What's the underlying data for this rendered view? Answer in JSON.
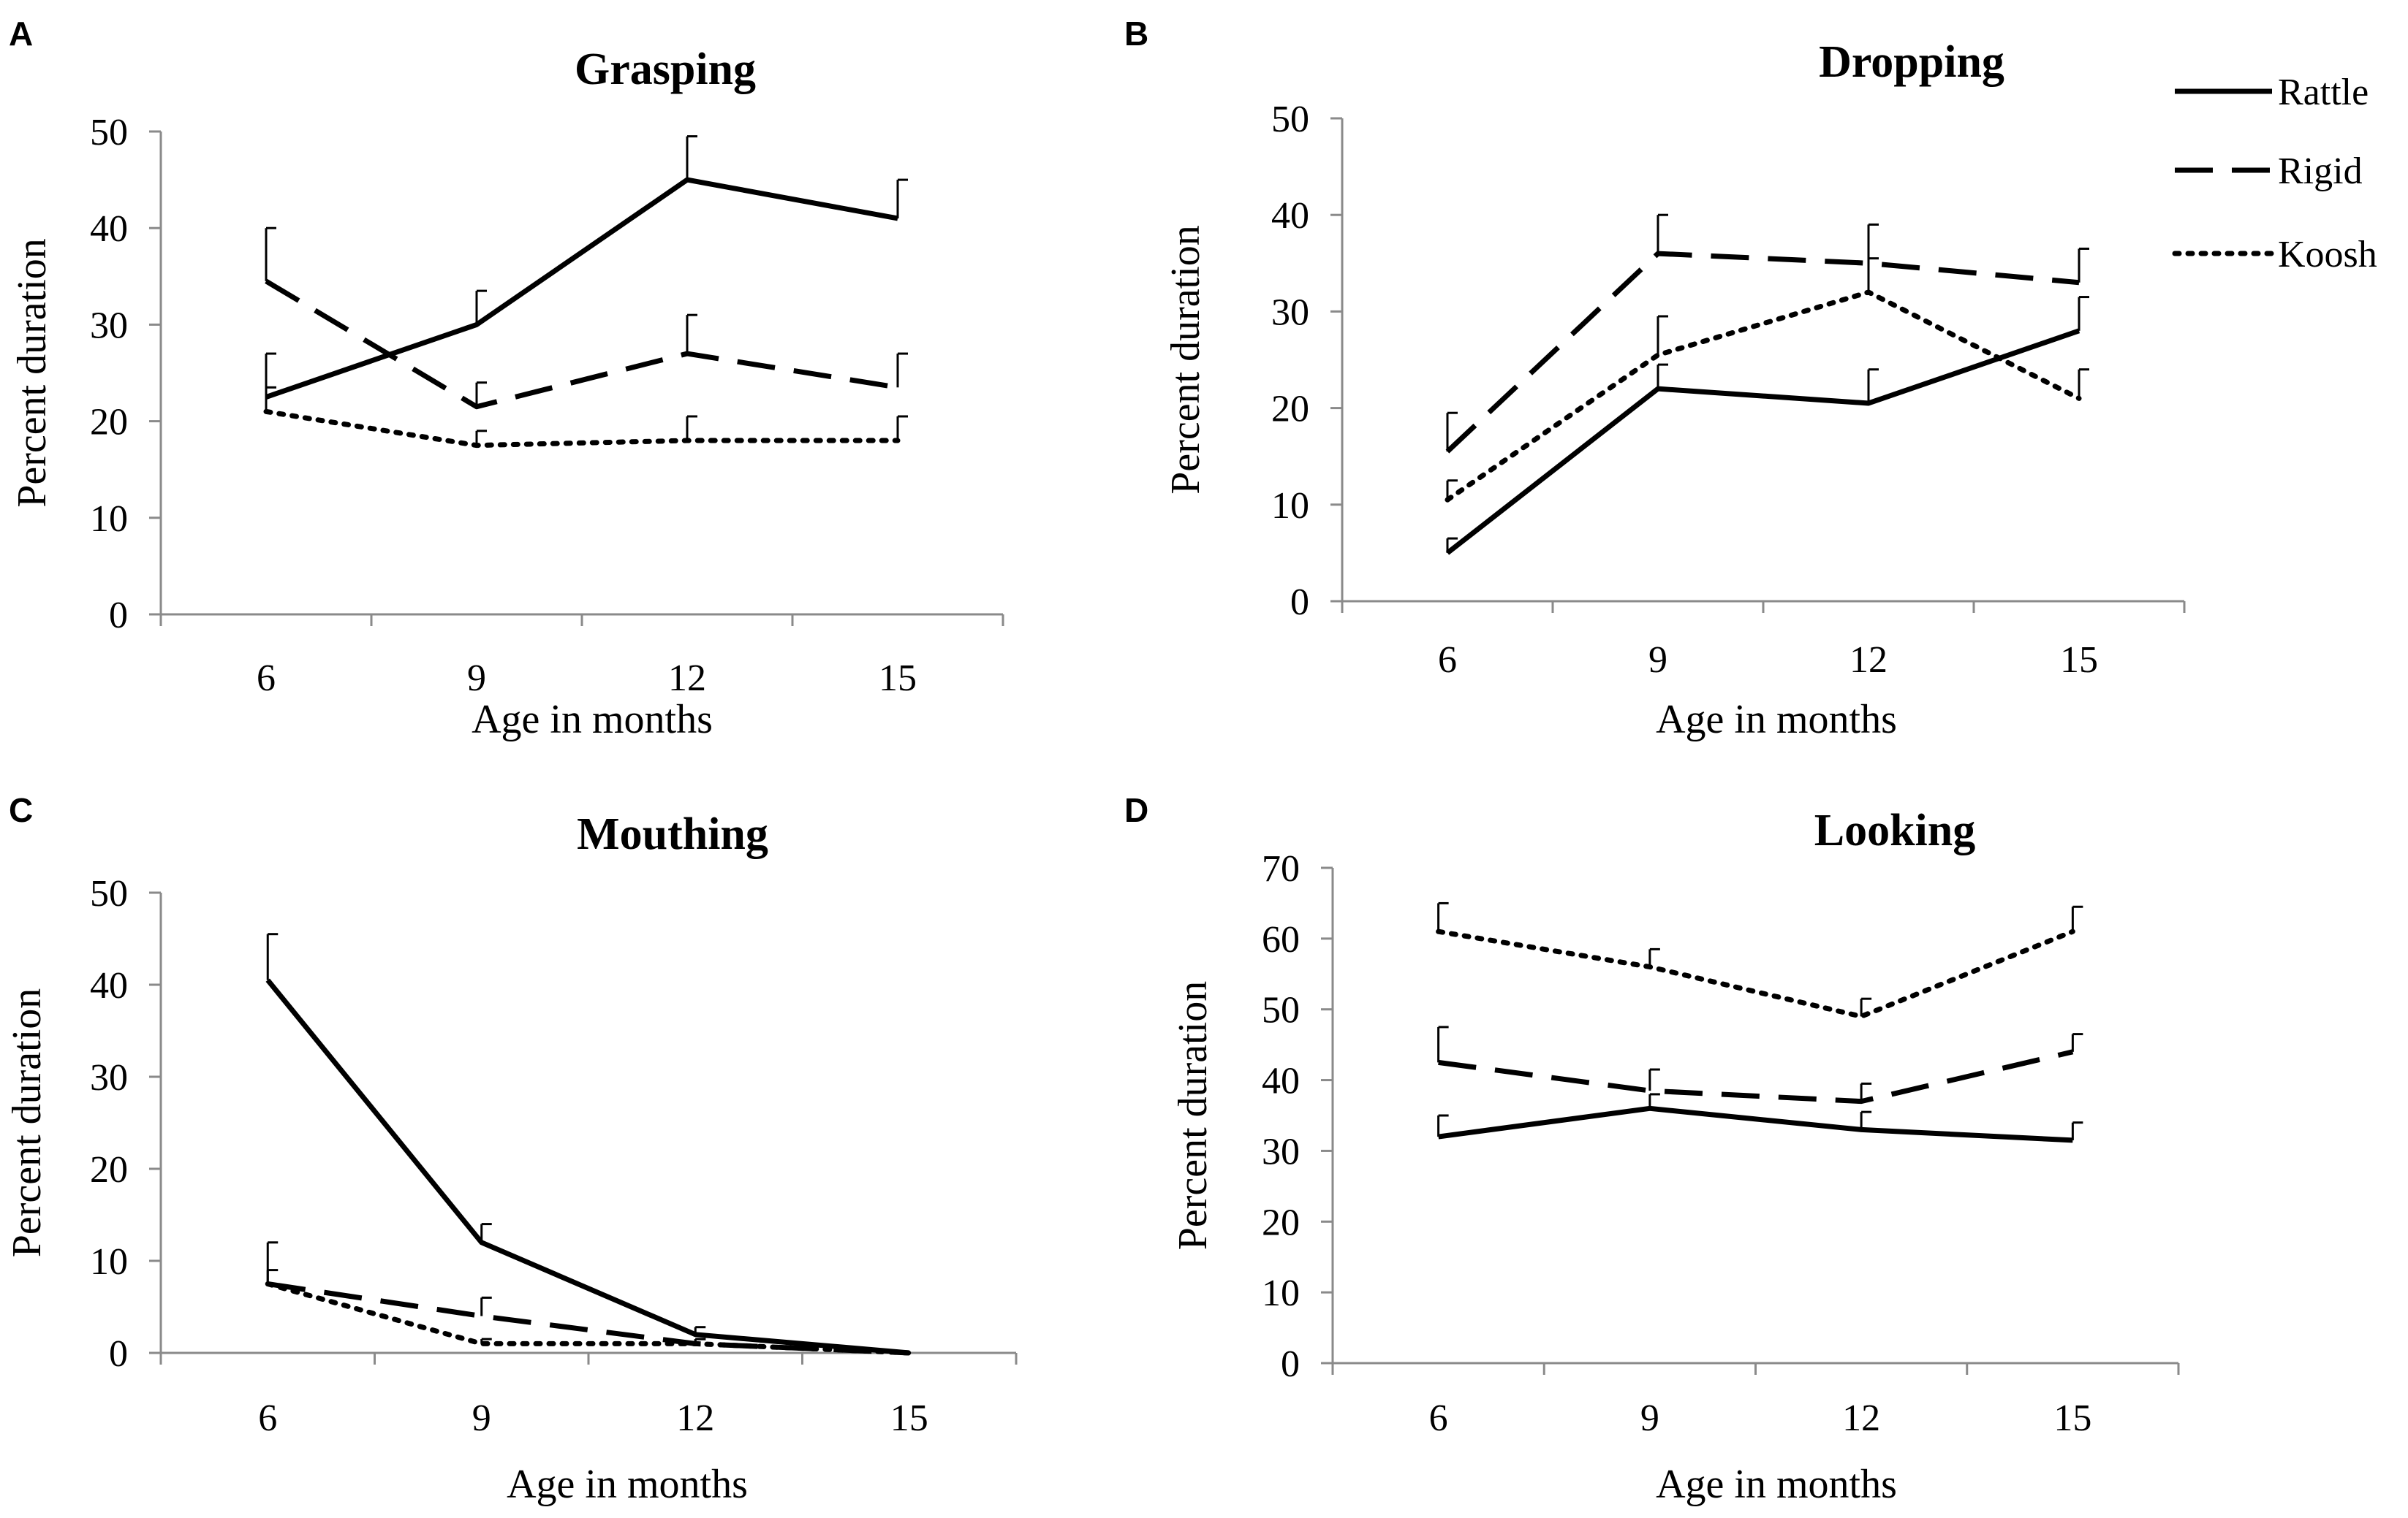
{
  "chart_data": [
    {
      "type": "line",
      "panel": "A",
      "title": "Grasping",
      "xlabel": "Age in months",
      "ylabel": "Percent duration",
      "categories": [
        "6",
        "9",
        "12",
        "15"
      ],
      "yticks": [
        "0",
        "10",
        "20",
        "30",
        "40",
        "50"
      ],
      "ylim": [
        0,
        50
      ],
      "series": [
        {
          "name": "Rattle",
          "values": [
            22.5,
            30,
            45,
            41
          ],
          "errors": [
            4.5,
            3.5,
            4.5,
            4
          ]
        },
        {
          "name": "Rigid",
          "values": [
            34.5,
            21.5,
            27,
            23.5
          ],
          "errors": [
            5.5,
            2.5,
            4,
            3.5
          ]
        },
        {
          "name": "Koosh",
          "values": [
            21,
            17.5,
            18,
            18
          ],
          "errors": [
            2.5,
            1.5,
            2.5,
            2.5
          ]
        }
      ]
    },
    {
      "type": "line",
      "panel": "B",
      "title": "Dropping",
      "xlabel": "Age in months",
      "ylabel": "Percent duration",
      "categories": [
        "6",
        "9",
        "12",
        "15"
      ],
      "yticks": [
        "0",
        "10",
        "20",
        "30",
        "40",
        "50"
      ],
      "ylim": [
        0,
        50
      ],
      "series": [
        {
          "name": "Rattle",
          "values": [
            5,
            22,
            20.5,
            28
          ],
          "errors": [
            1.5,
            2.5,
            3.5,
            3.5
          ]
        },
        {
          "name": "Rigid",
          "values": [
            15.5,
            36,
            35,
            33
          ],
          "errors": [
            4,
            4,
            4,
            3.5
          ]
        },
        {
          "name": "Koosh",
          "values": [
            10.5,
            25.5,
            32,
            21
          ],
          "errors": [
            2,
            4,
            3.5,
            3
          ]
        }
      ]
    },
    {
      "type": "line",
      "panel": "C",
      "title": "Mouthing",
      "xlabel": "Age in months",
      "ylabel": "Percent duration",
      "categories": [
        "6",
        "9",
        "12",
        "15"
      ],
      "yticks": [
        "0",
        "10",
        "20",
        "30",
        "40",
        "50"
      ],
      "ylim": [
        0,
        50
      ],
      "series": [
        {
          "name": "Rattle",
          "values": [
            40.5,
            12,
            2,
            0
          ],
          "errors": [
            5,
            2,
            0.8,
            0
          ]
        },
        {
          "name": "Rigid",
          "values": [
            7.5,
            4,
            1,
            0
          ],
          "errors": [
            4.5,
            2,
            0.5,
            0
          ]
        },
        {
          "name": "Koosh",
          "values": [
            7.5,
            1,
            1,
            0
          ],
          "errors": [
            1.5,
            0.5,
            0.5,
            0
          ]
        }
      ]
    },
    {
      "type": "line",
      "panel": "D",
      "title": "Looking",
      "xlabel": "Age in months",
      "ylabel": "Percent duration",
      "categories": [
        "6",
        "9",
        "12",
        "15"
      ],
      "yticks": [
        "0",
        "10",
        "20",
        "30",
        "40",
        "50",
        "60",
        "70"
      ],
      "ylim": [
        0,
        70
      ],
      "series": [
        {
          "name": "Rattle",
          "values": [
            32,
            36,
            33,
            31.5
          ],
          "errors": [
            3,
            2,
            2.5,
            2.5
          ]
        },
        {
          "name": "Rigid",
          "values": [
            42.5,
            38.5,
            37,
            44
          ],
          "errors": [
            5,
            3,
            2.5,
            2.5
          ]
        },
        {
          "name": "Koosh",
          "values": [
            61,
            56,
            49,
            61
          ],
          "errors": [
            4,
            2.5,
            2.5,
            3.5
          ]
        }
      ]
    }
  ],
  "legend": [
    {
      "label": "Rattle",
      "style": "solid"
    },
    {
      "label": "Rigid",
      "style": "dashed"
    },
    {
      "label": "Koosh",
      "style": "dotted"
    }
  ],
  "colors": {
    "line": "#000000",
    "axis": "#8a8a8a",
    "background": "#ffffff"
  }
}
